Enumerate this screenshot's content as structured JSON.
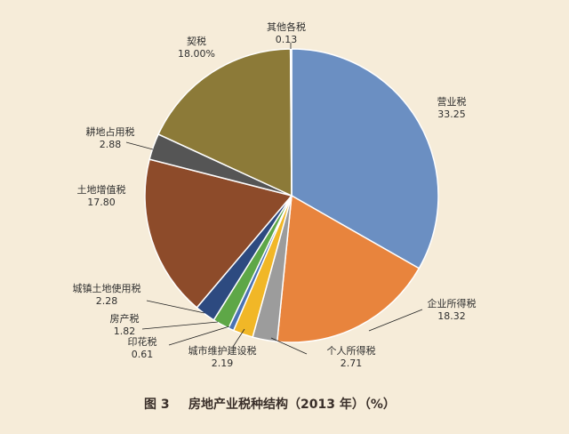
{
  "chart_data": {
    "type": "pie",
    "title": "",
    "caption": {
      "fig": "图 3",
      "text": "房地产业税种结构（2013 年）（%）"
    },
    "slices": [
      {
        "name": "营业税",
        "label": "33.25",
        "value": 33.25,
        "color": "#6b8fc2"
      },
      {
        "name": "企业所得税",
        "label": "18.32",
        "value": 18.32,
        "color": "#e8843d"
      },
      {
        "name": "个人所得税",
        "label": "2.71",
        "value": 2.71,
        "color": "#9c9c9c"
      },
      {
        "name": "城市维护建设税",
        "label": "2.19",
        "value": 2.19,
        "color": "#f1b727"
      },
      {
        "name": "印花税",
        "label": "0.61",
        "value": 0.61,
        "color": "#4b72b3"
      },
      {
        "name": "房产税",
        "label": "1.82",
        "value": 1.82,
        "color": "#5ea747"
      },
      {
        "name": "城镇土地使用税",
        "label": "2.28",
        "value": 2.28,
        "color": "#2d4a80"
      },
      {
        "name": "土地增值税",
        "label": "17.80",
        "value": 17.8,
        "color": "#8d4b2a"
      },
      {
        "name": "耕地占用税",
        "label": "2.88",
        "value": 2.88,
        "color": "#555555"
      },
      {
        "name": "契税",
        "label": "18.00%",
        "value": 18.0,
        "color": "#8c7a38"
      },
      {
        "name": "其他各税",
        "label": "0.13",
        "value": 0.13,
        "color": "#d9d9d9"
      }
    ]
  }
}
